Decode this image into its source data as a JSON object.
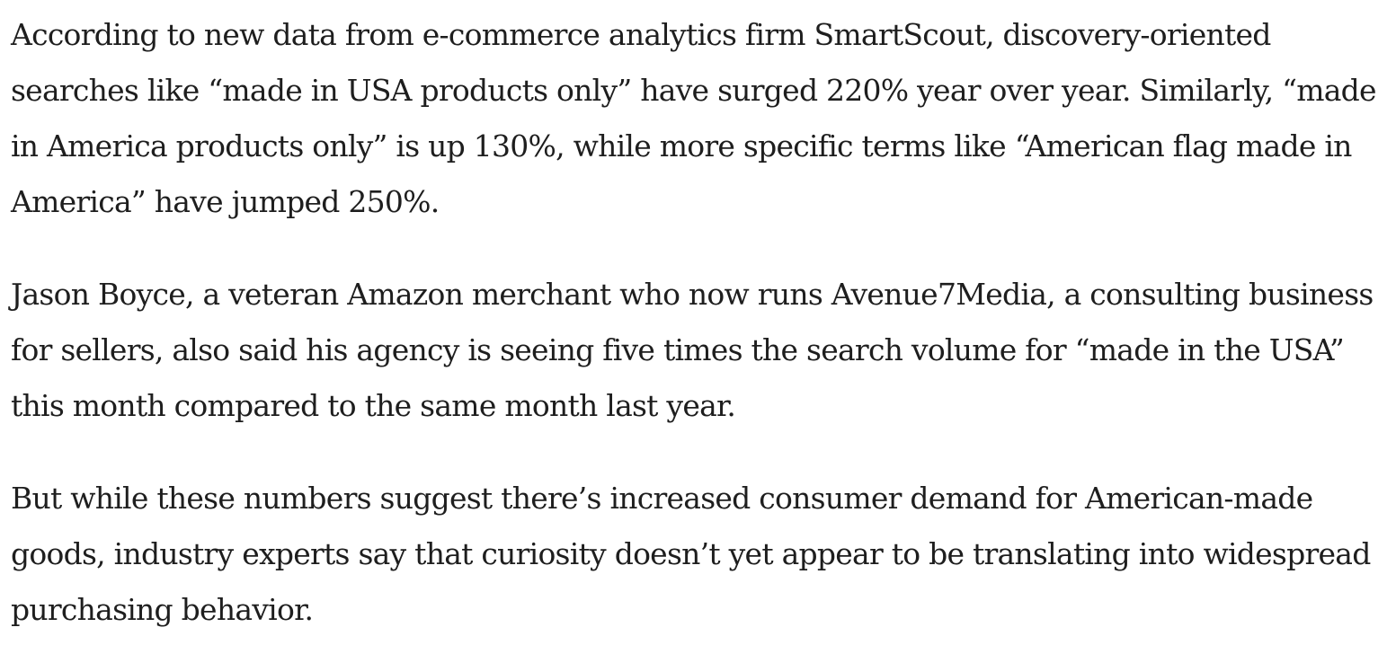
{
  "article": {
    "paragraphs": [
      "According to new data from e-commerce analytics firm SmartScout, discovery-oriented searches like “made in USA products only” have surged 220% year over year. Similarly, “made in America products only” is up 130%, while more specific terms like “American flag made in America” have jumped 250%.",
      "Jason Boyce, a veteran Amazon merchant who now runs Avenue7Media, a consulting business for sellers, also said his agency is seeing five times the search volume for “made in the USA” this month compared to the same month last year.",
      "But while these numbers suggest there’s increased consumer demand for American-made goods, industry experts say that curiosity doesn’t yet appear to be translating into widespread purchasing behavior."
    ]
  }
}
